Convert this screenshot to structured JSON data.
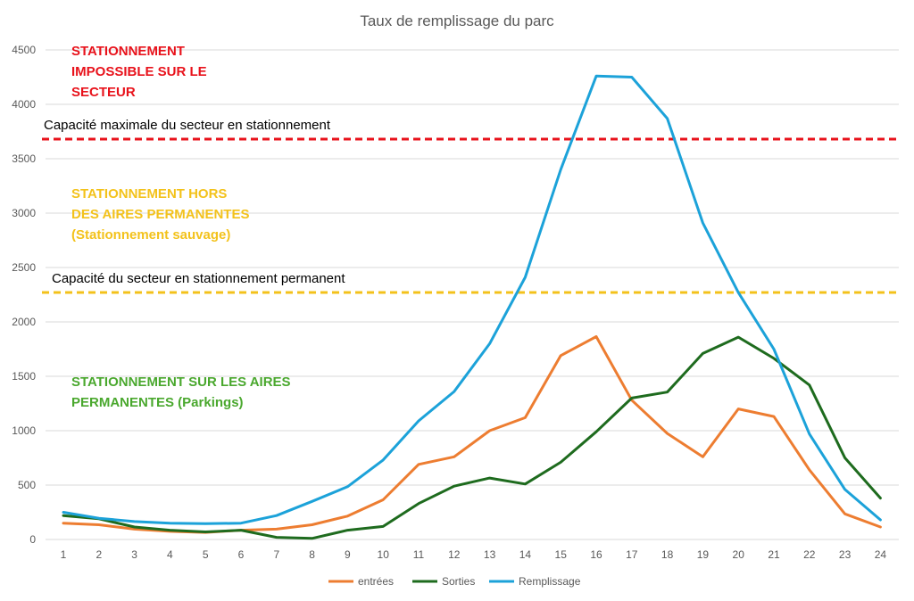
{
  "chart_data": {
    "type": "line",
    "title": "Taux de remplissage du parc",
    "xlabel": "",
    "ylabel": "",
    "ylim": [
      0,
      4500
    ],
    "y_ticks": [
      0,
      500,
      1000,
      1500,
      2000,
      2500,
      3000,
      3500,
      4000,
      4500
    ],
    "categories": [
      "1",
      "2",
      "3",
      "4",
      "5",
      "6",
      "7",
      "8",
      "9",
      "10",
      "11",
      "12",
      "13",
      "14",
      "15",
      "16",
      "17",
      "18",
      "19",
      "20",
      "21",
      "22",
      "23",
      "24"
    ],
    "grid": "horizontal",
    "legend_position": "bottom",
    "series": [
      {
        "name": "entrées",
        "color": "#ed7d31",
        "values": [
          150,
          135,
          95,
          75,
          65,
          85,
          95,
          135,
          215,
          365,
          690,
          760,
          1000,
          1120,
          1690,
          1865,
          1280,
          975,
          760,
          1200,
          1130,
          640,
          235,
          115
        ]
      },
      {
        "name": "Sorties",
        "color": "#1e6b1e",
        "values": [
          220,
          190,
          115,
          85,
          70,
          85,
          20,
          10,
          85,
          120,
          330,
          490,
          565,
          510,
          710,
          990,
          1300,
          1355,
          1710,
          1860,
          1665,
          1420,
          750,
          380
        ]
      },
      {
        "name": "Remplissage",
        "color": "#1ca2d9",
        "values": [
          250,
          195,
          165,
          150,
          145,
          150,
          220,
          350,
          485,
          730,
          1090,
          1360,
          1800,
          2410,
          3400,
          4260,
          4250,
          3870,
          2910,
          2270,
          1750,
          970,
          460,
          180
        ]
      }
    ],
    "reference_lines": [
      {
        "label": "Capacité maximale du secteur en stationnement",
        "value": 3680,
        "color": "#e8121b"
      },
      {
        "label": "Capacité du secteur en stationnement permanent",
        "value": 2270,
        "color": "#f3c21b"
      }
    ],
    "zone_labels": [
      {
        "lines": [
          "STATIONNEMENT",
          "IMPOSSIBLE SUR LE",
          "SECTEUR"
        ],
        "color": "#e8121b"
      },
      {
        "lines": [
          "STATIONNEMENT HORS",
          "DES AIRES PERMANENTES",
          "(Stationnement sauvage)"
        ],
        "color": "#f3c21b"
      },
      {
        "lines": [
          "STATIONNEMENT SUR LES AIRES",
          "PERMANENTES (Parkings)"
        ],
        "color": "#4aa82e"
      }
    ]
  }
}
